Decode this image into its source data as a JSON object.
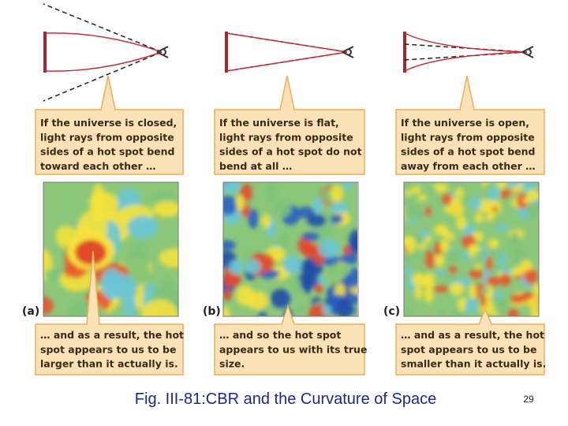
{
  "panels": [
    {
      "label": "(a)",
      "top_text": [
        "If the universe is closed,",
        "light rays from opposite",
        "sides of a hot spot bend",
        "toward each other …"
      ],
      "bottom_text": [
        "… and as a result, the hot",
        "spot appears to us to be",
        "larger than it actually is."
      ]
    },
    {
      "label": "(b)",
      "top_text": [
        "If the universe is flat,",
        "light rays from opposite",
        "sides of a hot spot do not",
        "bend at all …"
      ],
      "bottom_text": [
        "… and so the hot spot",
        "appears to us with its true",
        "size."
      ]
    },
    {
      "label": "(c)",
      "top_text": [
        "If the universe is open,",
        "light rays from opposite",
        "sides of a hot spot bend",
        "away from each other …"
      ],
      "bottom_text": [
        "… and as a result, the hot",
        "spot appears to us to be",
        "smaller than it actually is."
      ]
    }
  ],
  "caption": "Fig. III-81:CBR and the Curvature of Space",
  "page_number": "29"
}
